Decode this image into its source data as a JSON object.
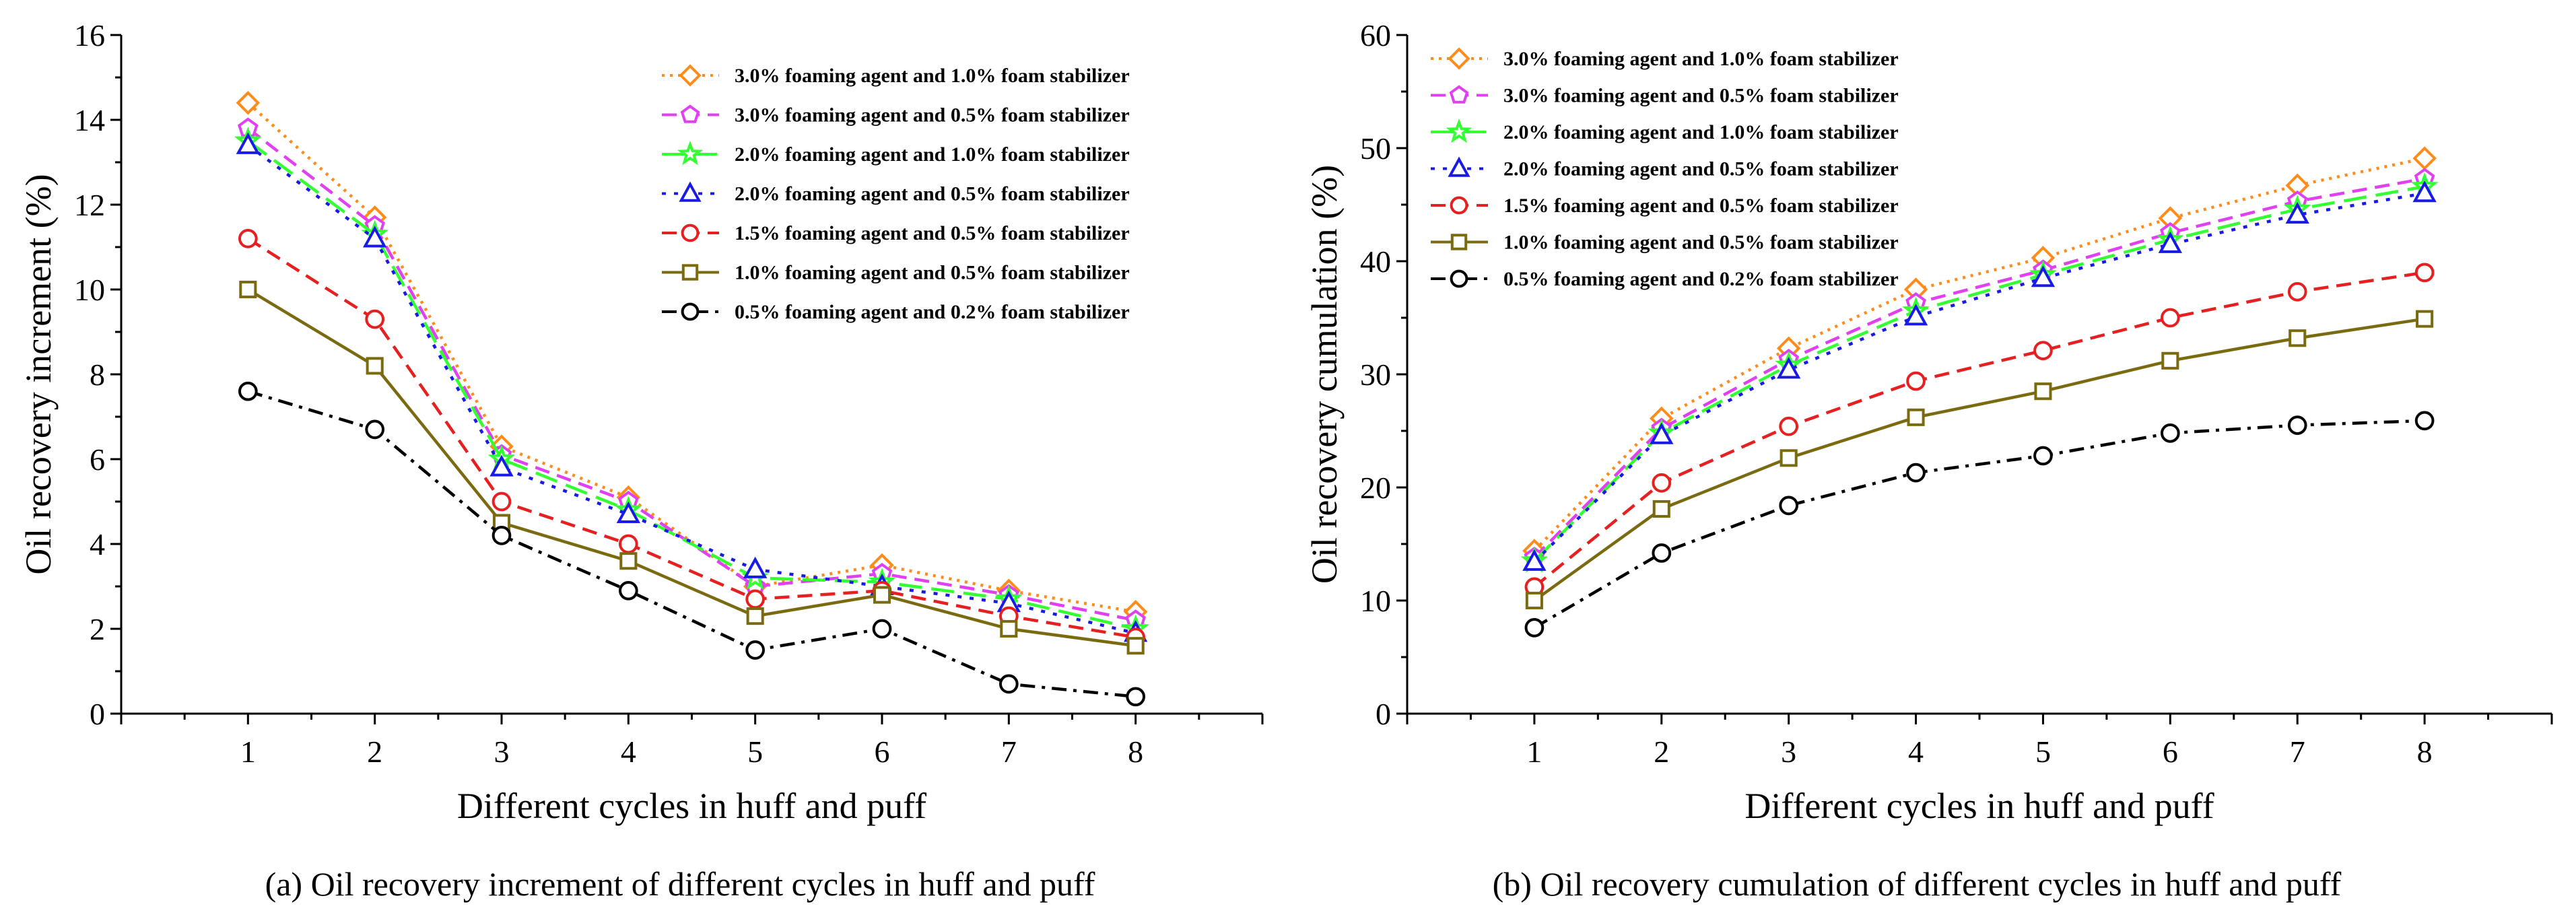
{
  "captions": {
    "a": "(a) Oil recovery increment of different cycles in huff and puff",
    "b": "(b) Oil recovery cumulation of different cycles in huff and puff"
  },
  "chart_data": [
    {
      "type": "line",
      "panel": "a",
      "title": "",
      "xlabel": "Different cycles in huff and puff",
      "ylabel": "Oil recovery increment (%)",
      "x": [
        1,
        2,
        3,
        4,
        5,
        6,
        7,
        8
      ],
      "xlim": [
        0,
        9
      ],
      "ylim": [
        0,
        16
      ],
      "yticks": [
        0,
        2,
        4,
        6,
        8,
        10,
        12,
        14,
        16
      ],
      "xticks": [
        1,
        2,
        3,
        4,
        5,
        6,
        7,
        8
      ],
      "legend_position": "top-right",
      "series": [
        {
          "name": "3.0% foaming agent and 1.0% foam stabilizer",
          "color": "#FF8C1A",
          "dash": "dot",
          "marker": "diamond",
          "values": [
            14.4,
            11.7,
            6.3,
            5.1,
            3.0,
            3.5,
            2.9,
            2.4
          ]
        },
        {
          "name": "3.0% foaming agent and 0.5% foam stabilizer",
          "color": "#E040F0",
          "dash": "dash",
          "marker": "pentagon",
          "values": [
            13.8,
            11.5,
            6.1,
            5.0,
            3.0,
            3.3,
            2.8,
            2.2
          ]
        },
        {
          "name": "2.0% foaming agent and 1.0% foam stabilizer",
          "color": "#33FF33",
          "dash": "longdash",
          "marker": "star",
          "values": [
            13.5,
            11.3,
            6.0,
            4.8,
            3.2,
            3.1,
            2.7,
            2.0
          ]
        },
        {
          "name": "2.0% foaming agent and 0.5% foam stabilizer",
          "color": "#1A1AE6",
          "dash": "shortdot",
          "marker": "triangle",
          "values": [
            13.4,
            11.2,
            5.8,
            4.7,
            3.4,
            3.0,
            2.6,
            1.9
          ]
        },
        {
          "name": "1.5% foaming agent and 0.5% foam stabilizer",
          "color": "#E62020",
          "dash": "dash",
          "marker": "circle",
          "values": [
            11.2,
            9.3,
            5.0,
            4.0,
            2.7,
            2.9,
            2.3,
            1.8
          ]
        },
        {
          "name": "1.0% foaming agent and 0.5% foam stabilizer",
          "color": "#7A6A10",
          "dash": "solid",
          "marker": "square",
          "values": [
            10.0,
            8.2,
            4.5,
            3.6,
            2.3,
            2.8,
            2.0,
            1.6
          ]
        },
        {
          "name": "0.5% foaming agent and 0.2% foam stabilizer",
          "color": "#000000",
          "dash": "dashdot",
          "marker": "circle",
          "values": [
            7.6,
            6.7,
            4.2,
            2.9,
            1.5,
            2.0,
            0.7,
            0.4
          ]
        }
      ]
    },
    {
      "type": "line",
      "panel": "b",
      "title": "",
      "xlabel": "Different cycles in huff and puff",
      "ylabel": "Oil recovery cumulation (%)",
      "x": [
        1,
        2,
        3,
        4,
        5,
        6,
        7,
        8
      ],
      "xlim": [
        0,
        9
      ],
      "ylim": [
        0,
        60
      ],
      "yticks": [
        0,
        10,
        20,
        30,
        40,
        50,
        60
      ],
      "xticks": [
        1,
        2,
        3,
        4,
        5,
        6,
        7,
        8
      ],
      "legend_position": "top-left",
      "series": [
        {
          "name": "3.0% foaming agent and 1.0% foam stabilizer",
          "color": "#FF8C1A",
          "dash": "dot",
          "marker": "diamond",
          "values": [
            14.4,
            26.1,
            32.3,
            37.5,
            40.3,
            43.8,
            46.7,
            49.1
          ]
        },
        {
          "name": "3.0% foaming agent and 0.5% foam stabilizer",
          "color": "#E040F0",
          "dash": "dash",
          "marker": "pentagon",
          "values": [
            13.8,
            25.2,
            31.3,
            36.3,
            39.2,
            42.5,
            45.3,
            47.3
          ]
        },
        {
          "name": "2.0% foaming agent and 1.0% foam stabilizer",
          "color": "#33FF33",
          "dash": "longdash",
          "marker": "star",
          "values": [
            13.5,
            24.8,
            30.8,
            35.6,
            38.8,
            41.9,
            44.6,
            46.6
          ]
        },
        {
          "name": "2.0% foaming agent and 0.5% foam stabilizer",
          "color": "#1A1AE6",
          "dash": "shortdot",
          "marker": "triangle",
          "values": [
            13.4,
            24.6,
            30.4,
            35.1,
            38.5,
            41.5,
            44.1,
            46.0
          ]
        },
        {
          "name": "1.5% foaming agent and 0.5% foam stabilizer",
          "color": "#E62020",
          "dash": "dash",
          "marker": "circle",
          "values": [
            11.2,
            20.4,
            25.4,
            29.4,
            32.1,
            35.0,
            37.3,
            39.0
          ]
        },
        {
          "name": "1.0% foaming agent and 0.5% foam stabilizer",
          "color": "#7A6A10",
          "dash": "solid",
          "marker": "square",
          "values": [
            10.0,
            18.1,
            22.6,
            26.2,
            28.5,
            31.2,
            33.2,
            34.9
          ]
        },
        {
          "name": "0.5% foaming agent and 0.2% foam stabilizer",
          "color": "#000000",
          "dash": "dashdot",
          "marker": "circle",
          "values": [
            7.6,
            14.2,
            18.4,
            21.3,
            22.8,
            24.8,
            25.5,
            25.9
          ]
        }
      ]
    }
  ]
}
